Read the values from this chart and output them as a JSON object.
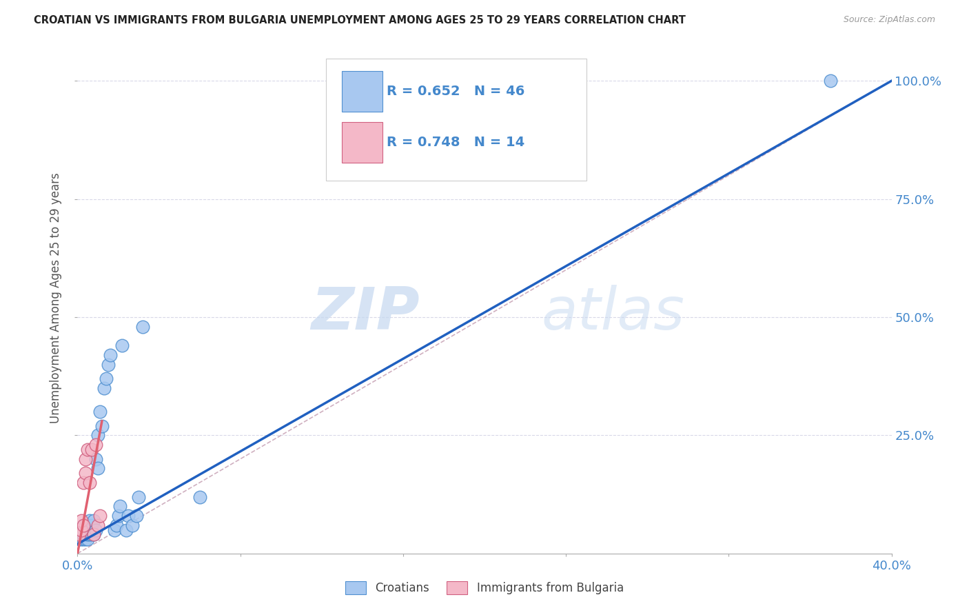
{
  "title": "CROATIAN VS IMMIGRANTS FROM BULGARIA UNEMPLOYMENT AMONG AGES 25 TO 29 YEARS CORRELATION CHART",
  "source": "Source: ZipAtlas.com",
  "ylabel": "Unemployment Among Ages 25 to 29 years",
  "xlim": [
    0.0,
    0.4
  ],
  "ylim": [
    0.0,
    1.08
  ],
  "x_ticks": [
    0.0,
    0.08,
    0.16,
    0.24,
    0.32,
    0.4
  ],
  "x_tick_labels": [
    "0.0%",
    "",
    "",
    "",
    "",
    "40.0%"
  ],
  "y_ticks": [
    0.25,
    0.5,
    0.75,
    1.0
  ],
  "y_tick_labels": [
    "25.0%",
    "50.0%",
    "75.0%",
    "100.0%"
  ],
  "croatians_x": [
    0.001,
    0.001,
    0.002,
    0.002,
    0.002,
    0.003,
    0.003,
    0.003,
    0.003,
    0.004,
    0.004,
    0.004,
    0.005,
    0.005,
    0.005,
    0.005,
    0.006,
    0.006,
    0.006,
    0.007,
    0.007,
    0.008,
    0.008,
    0.009,
    0.009,
    0.01,
    0.01,
    0.011,
    0.012,
    0.013,
    0.014,
    0.015,
    0.016,
    0.018,
    0.019,
    0.02,
    0.021,
    0.022,
    0.024,
    0.025,
    0.027,
    0.029,
    0.03,
    0.032,
    0.06,
    0.37
  ],
  "croatians_y": [
    0.03,
    0.04,
    0.03,
    0.04,
    0.05,
    0.03,
    0.04,
    0.05,
    0.06,
    0.03,
    0.04,
    0.06,
    0.03,
    0.04,
    0.05,
    0.06,
    0.04,
    0.05,
    0.07,
    0.04,
    0.06,
    0.04,
    0.07,
    0.05,
    0.2,
    0.18,
    0.25,
    0.3,
    0.27,
    0.35,
    0.37,
    0.4,
    0.42,
    0.05,
    0.06,
    0.08,
    0.1,
    0.44,
    0.05,
    0.08,
    0.06,
    0.08,
    0.12,
    0.48,
    0.12,
    1.0
  ],
  "bulgaria_x": [
    0.001,
    0.002,
    0.002,
    0.003,
    0.003,
    0.004,
    0.004,
    0.005,
    0.006,
    0.007,
    0.008,
    0.009,
    0.01,
    0.011
  ],
  "bulgaria_y": [
    0.04,
    0.05,
    0.07,
    0.06,
    0.15,
    0.17,
    0.2,
    0.22,
    0.15,
    0.22,
    0.04,
    0.23,
    0.06,
    0.08
  ],
  "croatian_color": "#a8c8f0",
  "croatia_edge_color": "#5090d0",
  "bulgaria_color": "#f4b8c8",
  "bulgaria_edge_color": "#d06080",
  "croatian_line_color": "#2060c0",
  "bulgaria_line_color": "#e06070",
  "diagonal_color": "#d0b0c0",
  "r_croatian": "0.652",
  "n_croatian": "46",
  "r_bulgaria": "0.748",
  "n_bulgaria": "14",
  "watermark_zip": "ZIP",
  "watermark_atlas": "atlas",
  "background_color": "#ffffff",
  "grid_color": "#d8d8e8",
  "tick_color": "#4488cc",
  "text_color": "#4488cc"
}
